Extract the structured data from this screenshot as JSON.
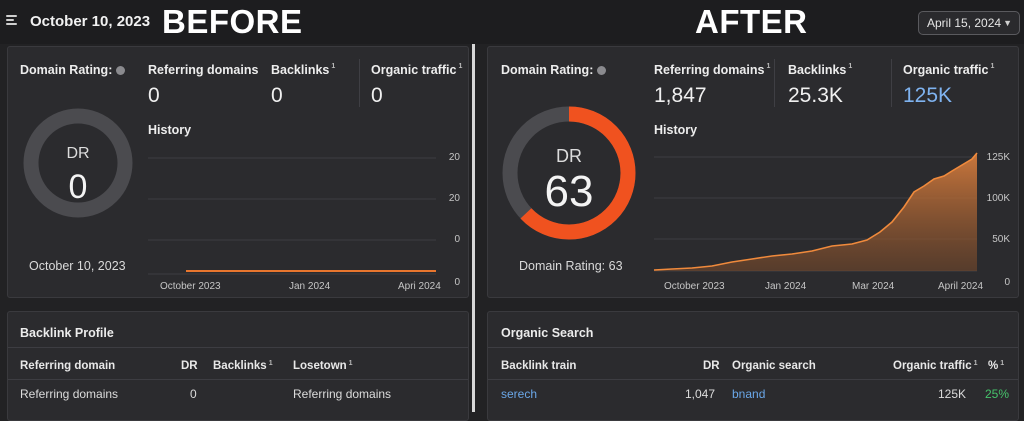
{
  "header": {
    "left_date": "October 10, 2023",
    "before_label": "BEFORE",
    "after_label": "AFTER",
    "date_selector": "April 15, 2024"
  },
  "before": {
    "dr_title": "Domain Rating:",
    "metrics": [
      {
        "label": "Referring domains",
        "sup": "",
        "value": "0"
      },
      {
        "label": "Backlinks",
        "sup": "1",
        "value": "0"
      },
      {
        "label": "Organic traffic",
        "sup": "1",
        "value": "0"
      }
    ],
    "gauge": {
      "label": "DR",
      "value": "0",
      "fill": 0
    },
    "date_caption": "October 10, 2023",
    "history_label": "History",
    "y_ticks": [
      "20",
      "20",
      "0",
      "0"
    ],
    "x_ticks": [
      "October 2023",
      "Jan 2024",
      "Apri 2024"
    ]
  },
  "after": {
    "dr_title": "Domain Rating:",
    "metrics": [
      {
        "label": "Referring domains",
        "sup": "1",
        "value": "1,847"
      },
      {
        "label": "Backlinks",
        "sup": "1",
        "value": "25.3K"
      },
      {
        "label": "Organic traffic",
        "sup": "1",
        "value": "125K"
      }
    ],
    "gauge": {
      "label": "DR",
      "value": "63",
      "fill": 0.63
    },
    "dr_caption": "Domain Rating: 63",
    "history_label": "History",
    "y_ticks": [
      "125K",
      "100K",
      "50K",
      "0"
    ],
    "x_ticks": [
      "October 2023",
      "Jan 2024",
      "Mar 2024",
      "April 2024"
    ]
  },
  "backlink_profile": {
    "title": "Backlink Profile",
    "headers": [
      "Referring domain",
      "DR",
      "Backlinks",
      "1",
      "Losetown",
      "1"
    ],
    "rows": [
      [
        "Referring domains",
        "0",
        "Referring domains"
      ]
    ]
  },
  "organic_search": {
    "title": "Organic Search",
    "headers": [
      "Backlink train",
      "DR",
      "Organic search",
      "Organic traffic",
      "1",
      "%",
      "1"
    ],
    "rows": [
      [
        "serech",
        "1,047",
        "bnand",
        "125K",
        "25%"
      ]
    ]
  },
  "colors": {
    "accent_orange": "#f0521f",
    "area_orange": "#c9773c",
    "link_blue": "#6aa7e8",
    "positive_green": "#46c36b"
  }
}
